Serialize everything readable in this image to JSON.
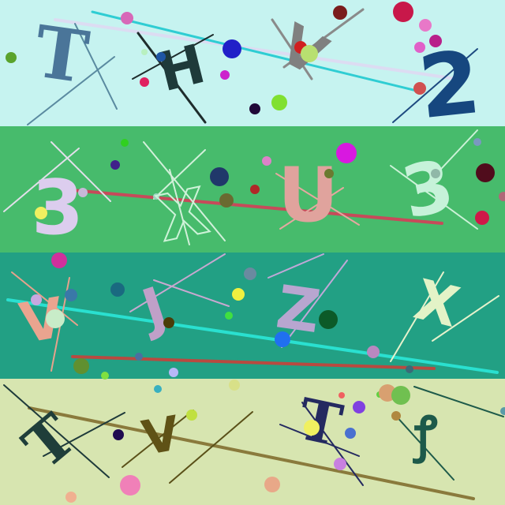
{
  "canvas": {
    "description_free": true
  },
  "bands": [
    {
      "name": "band-1",
      "background": "#c6f3f0",
      "letters": [
        {
          "text": "T",
          "color": "#4a7599"
        },
        {
          "text": "H",
          "color": "#1e3a3a"
        },
        {
          "text": "V",
          "color": "#808080"
        },
        {
          "text": "2",
          "color": "#16477f"
        }
      ]
    },
    {
      "name": "band-2",
      "background": "#47bb6c",
      "letters": [
        {
          "text": "3",
          "color": "#dccdee"
        },
        {
          "text": "X",
          "color": "#cdf3d8"
        },
        {
          "text": "U",
          "color": "#e0a39d"
        },
        {
          "text": "3",
          "color": "#c6f2d9"
        }
      ]
    },
    {
      "name": "band-3",
      "background": "#22a084",
      "letters": [
        {
          "text": "V",
          "color": "#eaa48f"
        },
        {
          "text": "J",
          "color": "#c0a0c8"
        },
        {
          "text": "Z",
          "color": "#b8a6d0"
        },
        {
          "text": "X",
          "color": "#e3f3c7"
        }
      ]
    },
    {
      "name": "band-4",
      "background": "#d7e5b0",
      "letters": [
        {
          "text": "T",
          "color": "#1f3e3a"
        },
        {
          "text": "V",
          "color": "#5f5216"
        },
        {
          "text": "T",
          "color": "#242a60"
        },
        {
          "text": "ꝭ",
          "color": "#1d5a4a"
        }
      ]
    }
  ]
}
